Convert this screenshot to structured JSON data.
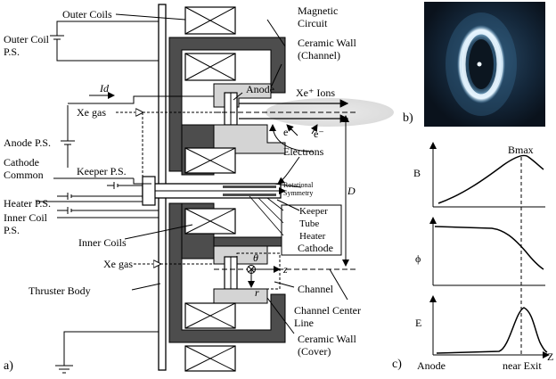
{
  "labels": {
    "outer_coils": "Outer Coils",
    "outer_coil_ps_1": "Outer Coil",
    "outer_coil_ps_2": "P.S.",
    "magnetic_circuit_1": "Magnetic",
    "magnetic_circuit_2": "Circuit",
    "ceramic_wall_channel_1": "Ceramic Wall",
    "ceramic_wall_channel_2": "(Channel)",
    "anode": "Anode",
    "id": "Id",
    "xe_ions": "Xe⁺ Ions",
    "xe_gas_top": "Xe gas",
    "anode_ps": "Anode P.S.",
    "electron": "e⁻",
    "electrons": "Electrons",
    "keeper_ps": "Keeper P.S.",
    "cathode_common_1": "Cathode",
    "cathode_common_2": "Common",
    "rotational_symmetry_1": "Rotational",
    "rotational_symmetry_2": "Symmetry",
    "d": "D",
    "heater_ps": "Heater P.S.",
    "keeper": "Keeper",
    "tube": "Tube",
    "heater": "Heater",
    "cathode": "Cathode",
    "inner_coil_ps_1": "Inner Coil",
    "inner_coil_ps_2": "P.S.",
    "inner_coils": "Inner Coils",
    "xe_gas_bottom": "Xe gas",
    "theta": "θ",
    "z_axis": "z",
    "r_axis": "r",
    "channel": "Channel",
    "thruster_body": "Thruster Body",
    "channel_center_line_1": "Channel Center",
    "channel_center_line_2": "Line",
    "ceramic_wall_cover_1": "Ceramic Wall",
    "ceramic_wall_cover_2": "(Cover)",
    "panel_a": "a)",
    "panel_b": "b)",
    "panel_c": "c)"
  },
  "profile_plots": {
    "bmax": "Bmax",
    "b_axis": "B",
    "phi_axis": "ϕ",
    "e_axis": "E",
    "z_axis": "Z",
    "anode": "Anode",
    "near_exit": "near Exit"
  },
  "colors": {
    "magnetic_circuit": "#4d4d4d",
    "ceramic": "#d4d4d4",
    "plume_glow": "#e2e2e2",
    "photo_background": "#101f2e",
    "plasma_ring": "#d8ecf8"
  }
}
